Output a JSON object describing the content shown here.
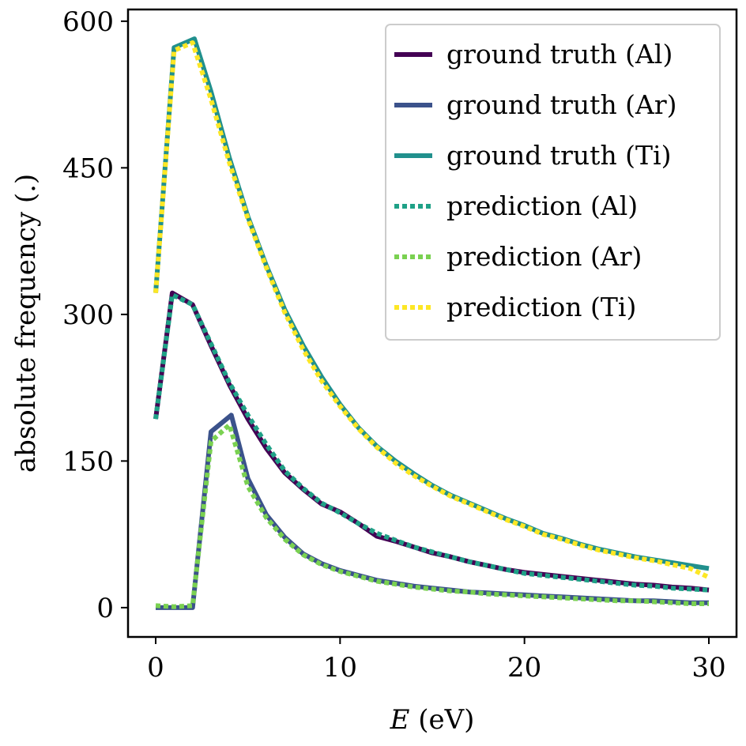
{
  "chart_data": {
    "type": "line",
    "xlabel_var": "E",
    "xlabel_unit": " (eV)",
    "ylabel": "absolute frequency (.)",
    "xlim": [
      -1.5,
      31.5
    ],
    "ylim": [
      -30,
      612
    ],
    "xticks": [
      0,
      10,
      20,
      30
    ],
    "yticks": [
      0,
      150,
      300,
      450,
      600
    ],
    "grid": false,
    "legend_placement": "top-right",
    "series": [
      {
        "name": "ground truth (Al)",
        "style": "solid",
        "color": "#440154",
        "x": [
          0,
          0.9,
          2,
          3,
          4,
          5,
          6,
          7,
          8,
          9,
          10,
          11,
          12,
          13,
          14,
          15,
          16,
          17,
          18,
          19,
          20,
          21,
          22,
          23,
          24,
          25,
          26,
          27,
          28,
          29,
          30
        ],
        "y": [
          193,
          322,
          310,
          268,
          228,
          193,
          163,
          138,
          121,
          106,
          98,
          86,
          73,
          68,
          62,
          56,
          52,
          47,
          43,
          39,
          36,
          34,
          32,
          30,
          28,
          26,
          24,
          23,
          21,
          20,
          18
        ]
      },
      {
        "name": "ground truth (Ar)",
        "style": "solid",
        "color": "#3b528b",
        "x": [
          0,
          1,
          2,
          3,
          4.1,
          5,
          6,
          7,
          8,
          9,
          10,
          11,
          12,
          13,
          14,
          15,
          16,
          17,
          18,
          19,
          20,
          21,
          22,
          23,
          24,
          25,
          26,
          27,
          28,
          29,
          30
        ],
        "y": [
          0,
          0,
          0,
          180,
          197,
          132,
          95,
          72,
          55,
          45,
          38,
          33,
          28,
          25,
          22,
          20,
          18,
          16,
          15,
          14,
          13,
          12,
          11,
          10,
          9,
          8,
          7,
          7,
          6,
          5,
          5
        ]
      },
      {
        "name": "ground truth (Ti)",
        "style": "solid",
        "color": "#21908d",
        "x": [
          0,
          1,
          2.1,
          3,
          4,
          5,
          6,
          7,
          8,
          9,
          10,
          11,
          12,
          13,
          14,
          15,
          16,
          17,
          18,
          19,
          20,
          21,
          22,
          23,
          24,
          25,
          26,
          27,
          28,
          29,
          30
        ],
        "y": [
          322,
          573,
          582,
          528,
          460,
          400,
          350,
          305,
          268,
          236,
          208,
          184,
          165,
          150,
          137,
          125,
          115,
          107,
          99,
          91,
          84,
          76,
          71,
          65,
          60,
          56,
          52,
          49,
          46,
          43,
          40
        ]
      },
      {
        "name": "prediction (Al)",
        "style": "dotted",
        "color": "#1fa187",
        "x": [
          0,
          0.9,
          2,
          3,
          4,
          5,
          6,
          7,
          8,
          9,
          10,
          11,
          12,
          13,
          14,
          15,
          16,
          17,
          18,
          19,
          20,
          21,
          22,
          23,
          24,
          25,
          26,
          27,
          28,
          29,
          30
        ],
        "y": [
          193,
          320,
          310,
          270,
          230,
          197,
          167,
          140,
          122,
          107,
          97,
          86,
          76,
          69,
          62,
          57,
          52,
          47,
          43,
          39,
          35,
          33,
          31,
          29,
          27,
          25,
          23,
          22,
          20,
          19,
          18
        ]
      },
      {
        "name": "prediction (Ar)",
        "style": "dotted",
        "color": "#7ad151",
        "x": [
          0,
          1,
          2,
          3,
          4,
          5,
          6,
          7,
          8,
          9,
          10,
          11,
          12,
          13,
          14,
          15,
          16,
          17,
          18,
          19,
          20,
          21,
          22,
          23,
          24,
          25,
          26,
          27,
          28,
          29,
          30
        ],
        "y": [
          2,
          1,
          2,
          170,
          187,
          124,
          92,
          70,
          54,
          44,
          37,
          32,
          27,
          24,
          21,
          19,
          17,
          16,
          14,
          13,
          12,
          11,
          10,
          9,
          8,
          7,
          7,
          6,
          5,
          4,
          4
        ]
      },
      {
        "name": "prediction (Ti)",
        "style": "dotted",
        "color": "#fde725",
        "x": [
          0,
          1,
          2,
          3,
          4,
          5,
          6,
          7,
          8,
          9,
          10,
          11,
          12,
          13,
          14,
          15,
          16,
          17,
          18,
          19,
          20,
          21,
          22,
          23,
          24,
          25,
          26,
          27,
          28,
          29,
          30
        ],
        "y": [
          322,
          570,
          578,
          520,
          455,
          398,
          348,
          302,
          264,
          232,
          206,
          183,
          164,
          148,
          135,
          124,
          114,
          106,
          98,
          90,
          83,
          75,
          70,
          64,
          59,
          55,
          51,
          48,
          44,
          40,
          31
        ]
      }
    ]
  }
}
